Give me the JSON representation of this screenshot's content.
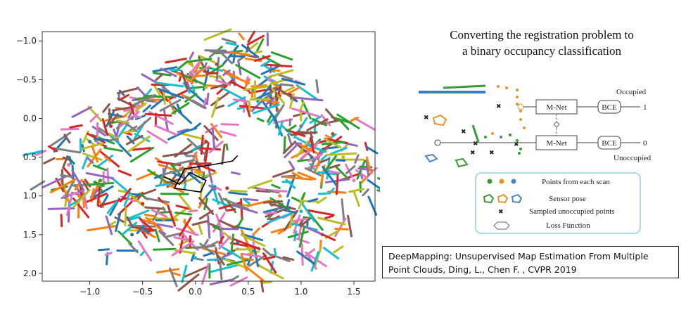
{
  "chart_data": {
    "type": "scatter",
    "title": "",
    "xlabel": "",
    "ylabel": "",
    "xlim": [
      -1.45,
      1.7
    ],
    "ylim": [
      2.1,
      -1.12
    ],
    "y_inverted": true,
    "xticks": [
      "−1.0",
      "−0.5",
      "0.0",
      "0.5",
      "1.0",
      "1.5"
    ],
    "xtick_values": [
      -1.0,
      -0.5,
      0.0,
      0.5,
      1.0,
      1.5
    ],
    "yticks": [
      "−1.0",
      "−0.5",
      "0.0",
      "0.5",
      "1.0",
      "1.5",
      "2.0"
    ],
    "ytick_values": [
      -1.0,
      -0.5,
      0.0,
      0.5,
      1.0,
      1.5,
      2.0
    ],
    "grid": false,
    "legend": "none",
    "series": [
      {
        "values": [
          [
            -1.0,
            0.3
          ],
          [
            -0.5,
            -0.2
          ],
          [
            0.0,
            -0.6
          ],
          [
            0.5,
            -0.9
          ],
          [
            0.9,
            -0.3
          ],
          [
            1.3,
            0.2
          ],
          [
            1.5,
            0.8
          ],
          [
            1.2,
            1.5
          ],
          [
            0.6,
            1.9
          ],
          [
            0.0,
            1.8
          ],
          [
            -0.6,
            1.5
          ],
          [
            -1.1,
            1.0
          ],
          [
            -0.2,
            0.6
          ],
          [
            0.3,
            0.9
          ]
        ]
      },
      {
        "values": [
          [
            -0.8,
            0.1
          ],
          [
            -0.3,
            -0.4
          ],
          [
            0.2,
            -0.7
          ],
          [
            0.7,
            -0.5
          ],
          [
            1.0,
            0.1
          ],
          [
            1.4,
            0.5
          ],
          [
            1.0,
            1.2
          ],
          [
            0.4,
            1.6
          ],
          [
            -0.3,
            1.3
          ],
          [
            -0.9,
            0.8
          ],
          [
            0.1,
            0.3
          ]
        ]
      },
      {
        "values": [
          [
            -1.2,
            0.6
          ],
          [
            -0.6,
            0.0
          ],
          [
            0.1,
            -0.4
          ],
          [
            0.6,
            -0.2
          ],
          [
            1.1,
            0.5
          ],
          [
            0.8,
            1.0
          ],
          [
            0.2,
            1.4
          ],
          [
            -0.5,
            1.1
          ],
          [
            -0.1,
            0.8
          ]
        ]
      }
    ],
    "trajectory": {
      "color": "#000000",
      "x": [
        -0.3,
        -0.15,
        -0.05,
        0.1,
        0.05,
        -0.2,
        -0.1,
        0.15,
        0.35,
        0.4
      ],
      "y": [
        0.75,
        0.85,
        0.7,
        0.8,
        0.95,
        0.9,
        0.65,
        0.6,
        0.55,
        0.48
      ]
    },
    "colors": [
      "#1f77b4",
      "#ff7f0e",
      "#2ca02c",
      "#d62728",
      "#9467bd",
      "#8c564b",
      "#e377c2",
      "#7f7f7f",
      "#bcbd22",
      "#17becf"
    ]
  },
  "diagram": {
    "title_line1": "Converting the registration problem to",
    "title_line2": "a binary occupancy classification",
    "mnet_top": "M-Net",
    "mnet_bottom": "M-Net",
    "bce_top": "BCE",
    "bce_bottom": "BCE",
    "occupied": "Occupied",
    "unoccupied": "Unoccupied",
    "one": "1",
    "zero": "0",
    "legend": {
      "points": "Points from each scan",
      "pose": "Sensor pose",
      "sampled": "Sampled unoccupied points",
      "loss": "Loss Function"
    }
  },
  "citation": {
    "line1": "DeepMapping: Unsupervised Map Estimation From Multiple",
    "line2": "Point Clouds, Ding, L., Chen F. , CVPR 2019"
  }
}
